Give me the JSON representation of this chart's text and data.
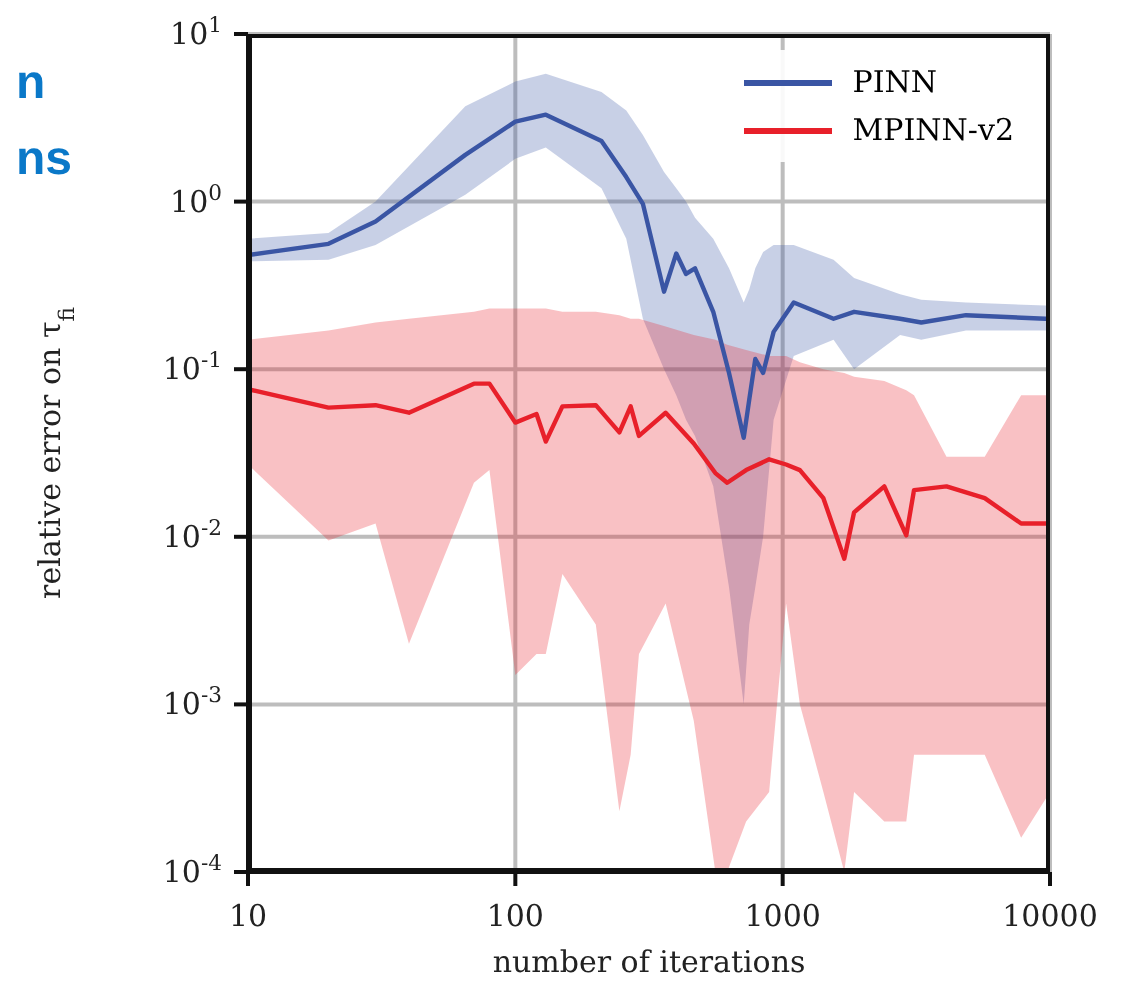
{
  "chart_data": {
    "type": "line",
    "xlabel": "number of iterations",
    "ylabel": "relative error on τ$_{fi}$",
    "log": "xy",
    "grid": true,
    "legend": "top right",
    "annotations": [
      "n",
      "ns"
    ],
    "xlim": [
      10,
      10000
    ],
    "xticks": [
      10,
      100,
      1000,
      10000
    ],
    "ylim": [
      0.0001,
      10
    ],
    "yticks": [
      {
        "value": 0.0001,
        "label": "10$^{-4}$"
      },
      {
        "value": 0.001,
        "label": "10$^{-3}$"
      },
      {
        "value": 0.01,
        "label": "10$^{-2}$"
      },
      {
        "value": 0.1,
        "label": "10$^{-1}$"
      },
      {
        "value": 1,
        "label": "10$^{0}$"
      },
      {
        "value": 10,
        "label": "10$^{1}$"
      }
    ],
    "series": [
      {
        "name": "PINN",
        "color": "#3a55a4",
        "x": [
          10,
          20,
          30,
          65,
          100,
          130,
          210,
          260,
          300,
          360,
          400,
          435,
          470,
          550,
          630,
          715,
          750,
          790,
          845,
          925,
          1100,
          1550,
          1850,
          2750,
          3300,
          4850,
          9600,
          10000
        ],
        "values": [
          0.48,
          0.56,
          0.76,
          1.9,
          3.0,
          3.3,
          2.3,
          1.4,
          0.97,
          0.29,
          0.49,
          0.37,
          0.4,
          0.22,
          0.095,
          0.039,
          0.066,
          0.115,
          0.095,
          0.167,
          0.25,
          0.2,
          0.22,
          0.2,
          0.19,
          0.21,
          0.2,
          0.2
        ],
        "lower": [
          0.44,
          0.45,
          0.55,
          1.1,
          1.8,
          2.1,
          1.2,
          0.6,
          0.2,
          0.1,
          0.07,
          0.05,
          0.04,
          0.02,
          0.005,
          0.001,
          0.003,
          0.005,
          0.01,
          0.05,
          0.12,
          0.15,
          0.1,
          0.16,
          0.15,
          0.17,
          0.17,
          0.17
        ],
        "upper": [
          0.6,
          0.65,
          1.0,
          3.7,
          5.2,
          5.8,
          4.5,
          3.5,
          2.5,
          1.5,
          1.2,
          1.0,
          0.8,
          0.6,
          0.4,
          0.25,
          0.3,
          0.4,
          0.5,
          0.55,
          0.55,
          0.45,
          0.35,
          0.28,
          0.26,
          0.25,
          0.24,
          0.24
        ]
      },
      {
        "name": "MPINN-v2",
        "color": "#e8202a",
        "x": [
          10,
          20,
          30,
          40,
          70,
          80,
          100,
          120,
          130,
          150,
          200,
          245,
          270,
          290,
          365,
          465,
          560,
          620,
          730,
          890,
          1030,
          1160,
          1420,
          1700,
          1850,
          2400,
          2900,
          3100,
          4100,
          5700,
          7800,
          10000
        ],
        "values": [
          0.076,
          0.059,
          0.061,
          0.055,
          0.082,
          0.082,
          0.048,
          0.054,
          0.037,
          0.06,
          0.061,
          0.042,
          0.06,
          0.04,
          0.055,
          0.036,
          0.024,
          0.021,
          0.025,
          0.029,
          0.027,
          0.025,
          0.017,
          0.0074,
          0.014,
          0.02,
          0.0102,
          0.019,
          0.02,
          0.017,
          0.012,
          0.012
        ],
        "lower": [
          0.027,
          0.0095,
          0.012,
          0.0023,
          0.021,
          0.025,
          0.0015,
          0.002,
          0.002,
          0.006,
          0.003,
          0.00023,
          0.0005,
          0.002,
          0.004,
          0.0008,
          0.0001,
          0.0001,
          0.0002,
          0.0003,
          0.004,
          0.001,
          0.0003,
          0.0001,
          0.0003,
          0.0002,
          0.0002,
          0.0005,
          0.0005,
          0.0005,
          0.00016,
          0.0003
        ],
        "upper": [
          0.15,
          0.17,
          0.19,
          0.2,
          0.22,
          0.23,
          0.23,
          0.23,
          0.23,
          0.22,
          0.22,
          0.21,
          0.2,
          0.2,
          0.18,
          0.16,
          0.15,
          0.14,
          0.13,
          0.12,
          0.12,
          0.11,
          0.1,
          0.095,
          0.09,
          0.085,
          0.075,
          0.07,
          0.03,
          0.03,
          0.07,
          0.07
        ]
      }
    ]
  }
}
